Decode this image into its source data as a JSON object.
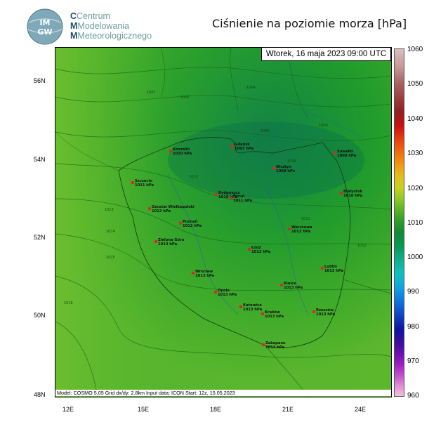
{
  "header": {
    "org_line1": "Centrum",
    "org_line2": "Modelowania",
    "org_line3": "Meteorologicznego",
    "logo_text": "IMGW",
    "title": "Ciśnienie na poziomie morza [hPa]"
  },
  "map": {
    "date": "Wtorek, 16 maja 2023 09:00 UTC",
    "footer": "Model: COSMO 5.05   Grid dx/dy: 2.8km   Input data: ICON   Start: 12z, 15.05.2023",
    "lat_labels": [
      "56N",
      "54N",
      "52N",
      "50N",
      "48N"
    ],
    "lon_labels": [
      "12E",
      "15E",
      "18E",
      "21E",
      "24E"
    ],
    "cities": [
      {
        "name": "Koszalin",
        "value": "1010 hPa"
      },
      {
        "name": "Gdańsk",
        "value": "1007 hPa"
      },
      {
        "name": "Suwałki",
        "value": "1009 hPa"
      },
      {
        "name": "Szczecin",
        "value": "1011 hPa"
      },
      {
        "name": "Olsztyn",
        "value": "1008 hPa"
      },
      {
        "name": "Bydgoszcz",
        "value": "1010 hPa"
      },
      {
        "name": "Toruń",
        "value": "1011 hPa"
      },
      {
        "name": "Białystok",
        "value": "1010 hPa"
      },
      {
        "name": "Gorzów Wielkopolski",
        "value": "1012 hPa"
      },
      {
        "name": "Poznań",
        "value": "1012 hPa"
      },
      {
        "name": "Warszawa",
        "value": "1012 hPa"
      },
      {
        "name": "Zielona Góra",
        "value": "1013 hPa"
      },
      {
        "name": "Łódź",
        "value": "1012 hPa"
      },
      {
        "name": "Lublin",
        "value": "1013 hPa"
      },
      {
        "name": "Wrocław",
        "value": "1013 hPa"
      },
      {
        "name": "Opole",
        "value": "1013 hPa"
      },
      {
        "name": "Kielce",
        "value": "1013 hPa"
      },
      {
        "name": "Katowice",
        "value": "1013 hPa"
      },
      {
        "name": "Kraków",
        "value": "1013 hPa"
      },
      {
        "name": "Rzeszów",
        "value": "1013 hPa"
      },
      {
        "name": "Zakopane",
        "value": "1013 hPa"
      }
    ],
    "isobar_labels": [
      "1004",
      "1005",
      "1006",
      "1007",
      "1008",
      "1009",
      "1010",
      "1011",
      "1012",
      "1013",
      "1014",
      "1015",
      "1016"
    ]
  },
  "colorbar": {
    "labels": [
      "1060",
      "1050",
      "1040",
      "1030",
      "1020",
      "1010",
      "1000",
      "990",
      "980",
      "970",
      "960"
    ]
  }
}
